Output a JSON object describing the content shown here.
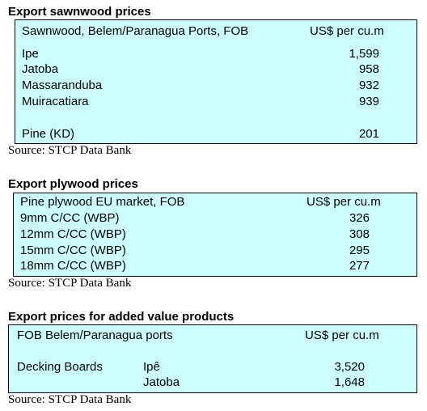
{
  "sawnwood": {
    "title": "Export sawnwood prices",
    "header_left": "Sawnwood, Belem/Paranagua Ports, FOB",
    "header_right": "US$ per cu.m",
    "rows": [
      {
        "name": "Ipe",
        "price": "1,599"
      },
      {
        "name": "Jatoba",
        "price": "958"
      },
      {
        "name": "Massaranduba",
        "price": "932"
      },
      {
        "name": "Muiracatiara",
        "price": "939"
      },
      {
        "name": "Pine (KD)",
        "price": "201"
      }
    ],
    "source": "Source: STCP Data Bank"
  },
  "plywood": {
    "title": "Export plywood prices",
    "header_left": "Pine plywood EU market, FOB",
    "header_right": "US$ per cu.m",
    "rows": [
      {
        "name": "9mm C/CC (WBP)",
        "price": "326"
      },
      {
        "name": "12mm C/CC (WBP)",
        "price": "308"
      },
      {
        "name": "15mm C/CC (WBP)",
        "price": "295"
      },
      {
        "name": "18mm C/CC (WBP)",
        "price": "277"
      }
    ],
    "source": "Source: STCP Data Bank"
  },
  "added_value": {
    "title": "Export prices for added value products",
    "header_left": "FOB Belem/Paranagua ports",
    "header_right": "US$ per cu.m",
    "product": "Decking Boards",
    "rows": [
      {
        "species": "Ipê",
        "price": "3,520"
      },
      {
        "species": "Jatoba",
        "price": "1,648"
      }
    ],
    "source": "Source: STCP Data Bank"
  },
  "colors": {
    "table_bg": "#ccffff"
  }
}
